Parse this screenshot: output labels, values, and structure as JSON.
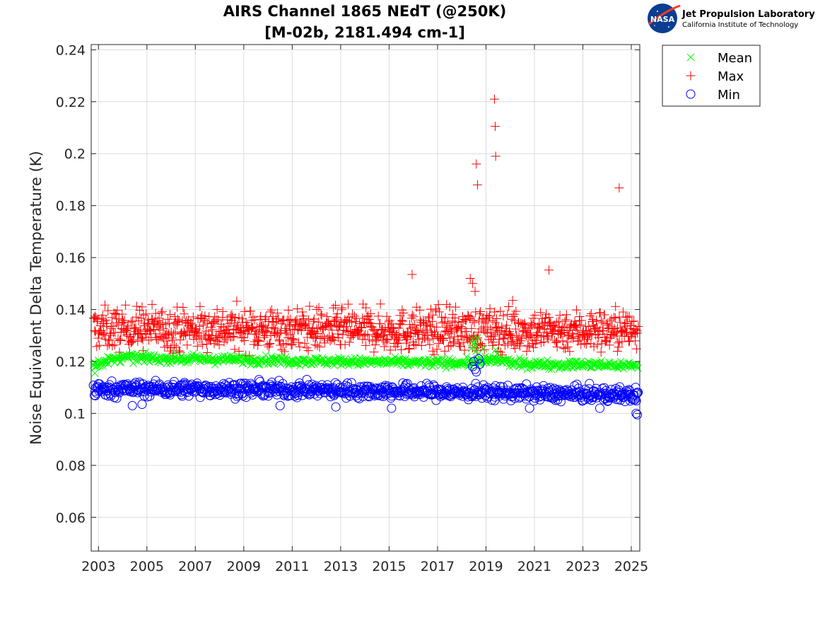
{
  "logo": {
    "nasa_text": "NASA",
    "org_name": "Jet Propulsion Laboratory",
    "org_sub": "California Institute of Technology"
  },
  "chart_data": {
    "type": "scatter",
    "title": "AIRS Channel 1865 NEdT (@250K)",
    "subtitle": "[M-02b, 2181.494 cm-1]",
    "xlabel": "",
    "ylabel": "Noise Equivalent Delta Temperature (K)",
    "xlim": [
      2002.7,
      2025.35
    ],
    "ylim": [
      0.047,
      0.242
    ],
    "x_ticks": [
      2003,
      2005,
      2007,
      2009,
      2011,
      2013,
      2015,
      2017,
      2019,
      2021,
      2023,
      2025
    ],
    "x_tick_labels": [
      "2003",
      "2005",
      "2007",
      "2009",
      "2011",
      "2013",
      "2015",
      "2017",
      "2019",
      "2021",
      "2023",
      "2025"
    ],
    "y_ticks": [
      0.06,
      0.08,
      0.1,
      0.12,
      0.14,
      0.16,
      0.18,
      0.2,
      0.22,
      0.24
    ],
    "y_tick_labels": [
      "0.06",
      "0.08",
      "0.1",
      "0.12",
      "0.14",
      "0.16",
      "0.18",
      "0.2",
      "0.22",
      "0.24"
    ],
    "grid": true,
    "legend_position": "outside-top-right",
    "series": [
      {
        "name": "Mean",
        "marker": "x",
        "color": "#00ff00",
        "typical_level": 0.12,
        "trend": [
          [
            2002.8,
            0.119
          ],
          [
            2003.3,
            0.12
          ],
          [
            2004.0,
            0.1215
          ],
          [
            2006.0,
            0.121
          ],
          [
            2010.0,
            0.1205
          ],
          [
            2014.0,
            0.1198
          ],
          [
            2017.0,
            0.1195
          ],
          [
            2018.2,
            0.1195
          ],
          [
            2019.5,
            0.1205
          ],
          [
            2020.3,
            0.119
          ],
          [
            2025.3,
            0.1185
          ]
        ],
        "spread": 0.0008,
        "outliers": [
          [
            2002.85,
            0.1155
          ],
          [
            2016.8,
            0.118
          ],
          [
            2018.4,
            0.125
          ],
          [
            2018.45,
            0.1285
          ],
          [
            2018.5,
            0.127
          ],
          [
            2018.55,
            0.126
          ],
          [
            2018.6,
            0.124
          ],
          [
            2018.65,
            0.129
          ],
          [
            2018.7,
            0.123
          ],
          [
            2018.9,
            0.125
          ],
          [
            2019.4,
            0.1245
          ],
          [
            2019.45,
            0.123
          ]
        ]
      },
      {
        "name": "Max",
        "marker": "+",
        "color": "#ff0000",
        "typical_level": 0.133,
        "trend": [
          [
            2002.8,
            0.1325
          ],
          [
            2010.0,
            0.1325
          ],
          [
            2015.0,
            0.132
          ],
          [
            2020.0,
            0.132
          ],
          [
            2025.3,
            0.132
          ]
        ],
        "spread": 0.004,
        "outliers": [
          [
            2015.95,
            0.1535
          ],
          [
            2016.8,
            0.124
          ],
          [
            2017.5,
            0.141
          ],
          [
            2018.35,
            0.152
          ],
          [
            2018.45,
            0.15
          ],
          [
            2018.55,
            0.147
          ],
          [
            2018.6,
            0.196
          ],
          [
            2018.65,
            0.188
          ],
          [
            2019.35,
            0.221
          ],
          [
            2019.38,
            0.2105
          ],
          [
            2019.4,
            0.199
          ],
          [
            2020.1,
            0.1435
          ],
          [
            2021.6,
            0.1552
          ],
          [
            2024.5,
            0.1868
          ],
          [
            2004.8,
            0.141
          ],
          [
            2007.9,
            0.14
          ]
        ]
      },
      {
        "name": "Min",
        "marker": "o",
        "color": "#0000ff",
        "typical_level": 0.109,
        "trend": [
          [
            2002.8,
            0.109
          ],
          [
            2004.0,
            0.1095
          ],
          [
            2008.0,
            0.1093
          ],
          [
            2012.0,
            0.109
          ],
          [
            2016.0,
            0.1085
          ],
          [
            2018.0,
            0.108
          ],
          [
            2020.0,
            0.108
          ],
          [
            2022.0,
            0.1075
          ],
          [
            2025.3,
            0.107
          ]
        ],
        "spread": 0.0014,
        "outliers": [
          [
            2004.4,
            0.103
          ],
          [
            2004.8,
            0.1035
          ],
          [
            2010.5,
            0.103
          ],
          [
            2012.8,
            0.1025
          ],
          [
            2015.1,
            0.102
          ],
          [
            2018.45,
            0.118
          ],
          [
            2018.5,
            0.12
          ],
          [
            2018.55,
            0.117
          ],
          [
            2018.6,
            0.116
          ],
          [
            2018.7,
            0.121
          ],
          [
            2018.75,
            0.119
          ],
          [
            2020.8,
            0.102
          ],
          [
            2023.7,
            0.102
          ],
          [
            2025.2,
            0.1
          ],
          [
            2025.25,
            0.0995
          ]
        ]
      }
    ]
  }
}
